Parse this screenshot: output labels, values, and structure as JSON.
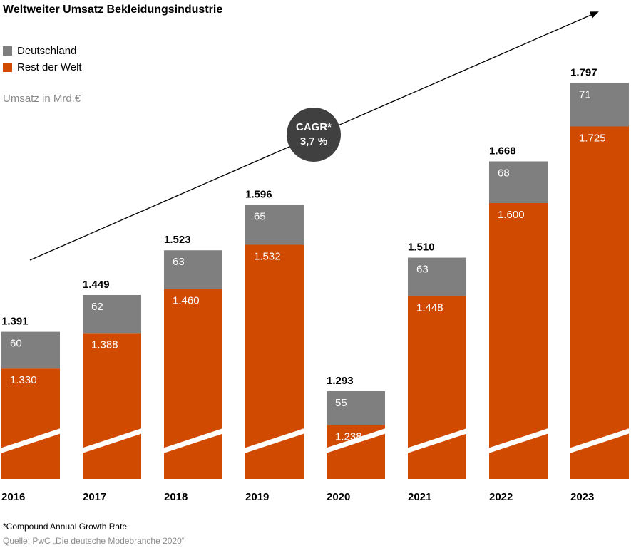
{
  "chart_data": {
    "type": "stacked_bar",
    "title": "Weltweiter Umsatz Bekleidungsindustrie",
    "y_label": "Umsatz in Mrd.€",
    "categories": [
      "2016",
      "2017",
      "2018",
      "2019",
      "2020",
      "2021",
      "2022",
      "2023"
    ],
    "series": [
      {
        "name": "Rest der Welt",
        "color": "#d04a02",
        "values": [
          1330,
          1388,
          1460,
          1532,
          1238,
          1448,
          1600,
          1725
        ],
        "value_labels": [
          "1.330",
          "1.388",
          "1.460",
          "1.532",
          "1.238",
          "1.448",
          "1.600",
          "1.725"
        ]
      },
      {
        "name": "Deutschland",
        "color": "#7f7f7f",
        "values": [
          60,
          62,
          63,
          65,
          55,
          63,
          68,
          71
        ]
      }
    ],
    "totals": {
      "values": [
        1391,
        1449,
        1523,
        1596,
        1293,
        1510,
        1668,
        1797
      ],
      "value_labels": [
        "1.391",
        "1.449",
        "1.523",
        "1.596",
        "1.293",
        "1.510",
        "1.668",
        "1.797"
      ]
    },
    "ylim": [
      1150,
      1800
    ],
    "axis_break": true,
    "annotation": {
      "line1": "CAGR*",
      "line2": "3,7 %"
    },
    "footnote": "*Compound Annual Growth Rate",
    "source": "Quelle: PwC „Die deutsche Modebranche 2020“"
  }
}
